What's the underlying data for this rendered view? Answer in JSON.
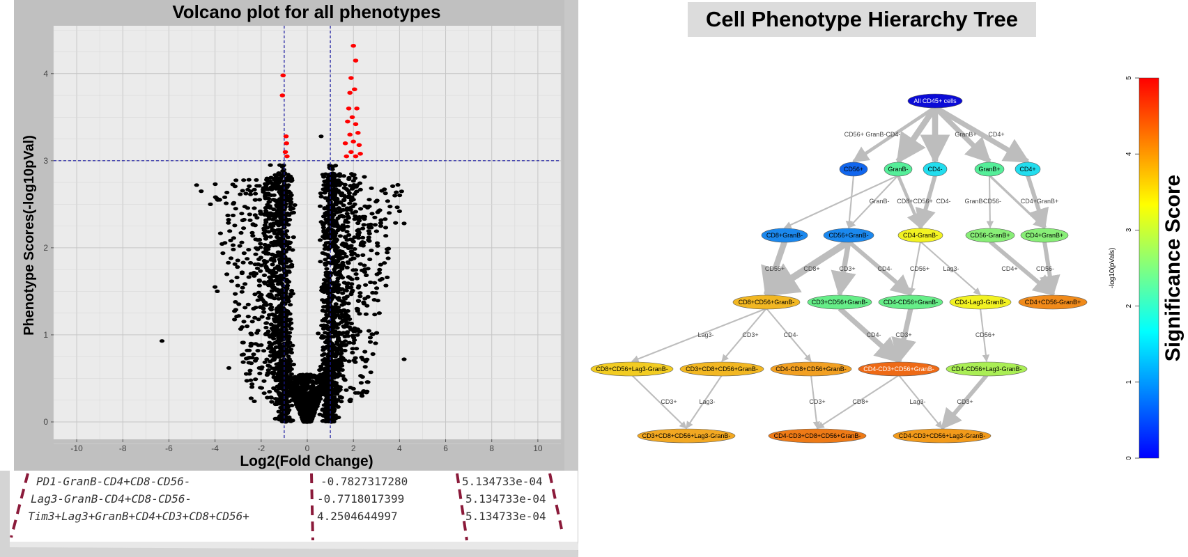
{
  "volcano": {
    "title": "Volcano plot for all phenotypes",
    "xlabel": "Log2(Fold Change)",
    "ylabel": "Phenotype Scores(-log10pVal)",
    "x_ticks": [
      "-10",
      "-8",
      "-6",
      "-4",
      "-2",
      "0",
      "2",
      "4",
      "6",
      "8",
      "10"
    ],
    "y_ticks": [
      "0",
      "1",
      "2",
      "3",
      "4"
    ]
  },
  "chart_data": {
    "type": "scatter",
    "title": "Volcano plot for all phenotypes",
    "xlabel": "Log2(Fold Change)",
    "ylabel": "Phenotype Scores(-log10pVal)",
    "xlim": [
      -11,
      11
    ],
    "ylim": [
      -0.2,
      4.55
    ],
    "grid": true,
    "thresholds": {
      "x": [
        -1,
        1
      ],
      "y": 3
    },
    "colors": {
      "significant": "#ff0000",
      "other": "#000000",
      "threshold_line": "#1a1aa0",
      "panel": "#ebebeb"
    },
    "significant_points": [
      [
        -1.05,
        3.98
      ],
      [
        -1.08,
        3.75
      ],
      [
        -0.92,
        3.28
      ],
      [
        -0.9,
        3.2
      ],
      [
        -0.95,
        3.1
      ],
      [
        -0.88,
        3.05
      ],
      [
        2.0,
        4.32
      ],
      [
        2.1,
        4.15
      ],
      [
        1.9,
        3.95
      ],
      [
        2.05,
        3.82
      ],
      [
        1.85,
        3.78
      ],
      [
        1.8,
        3.6
      ],
      [
        2.15,
        3.6
      ],
      [
        1.95,
        3.5
      ],
      [
        2.1,
        3.42
      ],
      [
        1.75,
        3.45
      ],
      [
        2.2,
        3.32
      ],
      [
        1.85,
        3.3
      ],
      [
        2.0,
        3.22
      ],
      [
        2.25,
        3.18
      ],
      [
        1.65,
        3.2
      ],
      [
        1.9,
        3.1
      ],
      [
        2.1,
        3.05
      ],
      [
        1.7,
        3.05
      ],
      [
        2.3,
        3.08
      ]
    ],
    "outliers": [
      [
        -6.3,
        0.93
      ],
      [
        -4.8,
        2.72
      ],
      [
        -4.6,
        2.65
      ],
      [
        -4.2,
        2.5
      ],
      [
        -4.0,
        1.55
      ],
      [
        -3.9,
        1.5
      ],
      [
        -3.4,
        0.62
      ],
      [
        3.8,
        2.6
      ],
      [
        4.0,
        2.42
      ],
      [
        4.2,
        2.28
      ],
      [
        4.2,
        0.72
      ],
      [
        0.6,
        3.28
      ],
      [
        -1.6,
        2.95
      ]
    ],
    "bulk_note": "Several thousand non-significant phenotypes (black) concentrated in two lobes at x≈-1 and x≈1 with a dense base near (0,0)."
  },
  "table": {
    "rows": [
      {
        "phenotype": "PD1-GranB-CD4+CD8-CD56-",
        "log2fc": "-0.7827317280",
        "pval": "5.134733e-04"
      },
      {
        "phenotype": "Lag3-GranB-CD4+CD8-CD56-",
        "log2fc": "-0.7718017399",
        "pval": "5.134733e-04"
      },
      {
        "phenotype": "Tim3+Lag3+GranB+CD4+CD3+CD8+CD56+",
        "log2fc": " 4.2504644997",
        "pval": "5.134733e-04"
      }
    ]
  },
  "tree": {
    "title": "Cell Phenotype Hierarchy Tree",
    "nodes": [
      {
        "id": "root",
        "label": "All CD45+ cells",
        "color": "#0b0bd6",
        "text_color": "#ffffff"
      },
      {
        "id": "cd56p",
        "label": "CD56+",
        "color": "#1166ee",
        "text_color": "#000000"
      },
      {
        "id": "granbm",
        "label": "GranB-",
        "color": "#55ee99",
        "text_color": "#000000"
      },
      {
        "id": "cd4m",
        "label": "CD4-",
        "color": "#22ddee",
        "text_color": "#000000"
      },
      {
        "id": "granbp",
        "label": "GranB+",
        "color": "#55ee99",
        "text_color": "#000000"
      },
      {
        "id": "cd4p",
        "label": "CD4+",
        "color": "#22ddee",
        "text_color": "#000000"
      },
      {
        "id": "cd8granbm",
        "label": "CD8+GranB-",
        "color": "#1b88ee",
        "text_color": "#000000"
      },
      {
        "id": "cd56granbm",
        "label": "CD56+GranB-",
        "color": "#1b88ee",
        "text_color": "#000000"
      },
      {
        "id": "cd4mgranbm",
        "label": "CD4-GranB-",
        "color": "#f2f222",
        "text_color": "#000000"
      },
      {
        "id": "cd56mgranbp",
        "label": "CD56-GranB+",
        "color": "#88ee77",
        "text_color": "#000000"
      },
      {
        "id": "cd4pgranbp",
        "label": "CD4+GranB+",
        "color": "#88ee77",
        "text_color": "#000000"
      },
      {
        "id": "cd8cd56granbm",
        "label": "CD8+CD56+GranB-",
        "color": "#f2b722",
        "text_color": "#000000"
      },
      {
        "id": "cd3cd56granbm",
        "label": "CD3+CD56+GranB-",
        "color": "#66ee88",
        "text_color": "#000000"
      },
      {
        "id": "cd4mcd56granbm",
        "label": "CD4-CD56+GranB-",
        "color": "#66ee88",
        "text_color": "#000000"
      },
      {
        "id": "cd4mlag3granbm",
        "label": "CD4-Lag3-GranB-",
        "color": "#f2f222",
        "text_color": "#000000"
      },
      {
        "id": "cd4pcd56mgranbp",
        "label": "CD4+CD56-GranB+",
        "color": "#f08a1a",
        "text_color": "#000000"
      },
      {
        "id": "cd8cd56lag3granbm",
        "label": "CD8+CD56+Lag3-GranB-",
        "color": "#f2cc22",
        "text_color": "#000000"
      },
      {
        "id": "cd3cd8cd56granbm",
        "label": "CD3+CD8+CD56+GranB-",
        "color": "#f2b722",
        "text_color": "#000000"
      },
      {
        "id": "cd4mcd8cd56granbm",
        "label": "CD4-CD8+CD56+GranB-",
        "color": "#f2a022",
        "text_color": "#000000"
      },
      {
        "id": "cd4mcd3cd56granbm",
        "label": "CD4-CD3+CD56+GranB-",
        "color": "#ee6a16",
        "text_color": "#ffffff"
      },
      {
        "id": "cd4mcd56lag3granbm",
        "label": "CD4-CD56+Lag3-GranB-",
        "color": "#aaee55",
        "text_color": "#000000"
      },
      {
        "id": "cd3cd8cd56lag3granbm",
        "label": "CD3+CD8+CD56+Lag3-GranB-",
        "color": "#f2a822",
        "text_color": "#000000"
      },
      {
        "id": "cd4mcd3cd8cd56granbm",
        "label": "CD4-CD3+CD8+CD56+GranB-",
        "color": "#ee7a16",
        "text_color": "#000000"
      },
      {
        "id": "cd4mcd3cd56lag3granbm",
        "label": "CD4-CD3+CD56+Lag3-GranB-",
        "color": "#f29a1a",
        "text_color": "#000000"
      }
    ],
    "edges": [
      {
        "from": "root",
        "to": "cd56p",
        "w": 3
      },
      {
        "from": "root",
        "to": "granbm",
        "w": 6
      },
      {
        "from": "root",
        "to": "cd4m",
        "w": 6
      },
      {
        "from": "root",
        "to": "granbp",
        "w": 5
      },
      {
        "from": "root",
        "to": "cd4p",
        "w": 5
      },
      {
        "from": "cd56p",
        "to": "cd56granbm",
        "w": 1
      },
      {
        "from": "granbm",
        "to": "cd8granbm",
        "w": 1
      },
      {
        "from": "granbm",
        "to": "cd56granbm",
        "w": 1
      },
      {
        "from": "granbm",
        "to": "cd4mgranbm",
        "w": 3
      },
      {
        "from": "cd4m",
        "to": "cd4mgranbm",
        "w": 4
      },
      {
        "from": "granbp",
        "to": "cd56mgranbp",
        "w": 1
      },
      {
        "from": "granbp",
        "to": "cd4pgranbp",
        "w": 2
      },
      {
        "from": "cd4p",
        "to": "cd4pgranbp",
        "w": 4
      },
      {
        "from": "cd8granbm",
        "to": "cd8cd56granbm",
        "w": 6
      },
      {
        "from": "cd56granbm",
        "to": "cd8cd56granbm",
        "w": 7
      },
      {
        "from": "cd56granbm",
        "to": "cd3cd56granbm",
        "w": 5
      },
      {
        "from": "cd56granbm",
        "to": "cd4mcd56granbm",
        "w": 4
      },
      {
        "from": "cd4mgranbm",
        "to": "cd4mcd56granbm",
        "w": 1
      },
      {
        "from": "cd4mgranbm",
        "to": "cd4mlag3granbm",
        "w": 1
      },
      {
        "from": "cd56mgranbp",
        "to": "cd4pcd56mgranbp",
        "w": 4
      },
      {
        "from": "cd4pgranbp",
        "to": "cd4pcd56mgranbp",
        "w": 4
      },
      {
        "from": "cd8cd56granbm",
        "to": "cd8cd56lag3granbm",
        "w": 1
      },
      {
        "from": "cd8cd56granbm",
        "to": "cd3cd8cd56granbm",
        "w": 1
      },
      {
        "from": "cd8cd56granbm",
        "to": "cd4mcd8cd56granbm",
        "w": 1
      },
      {
        "from": "cd3cd56granbm",
        "to": "cd4mcd3cd56granbm",
        "w": 5
      },
      {
        "from": "cd4mcd56granbm",
        "to": "cd4mcd3cd56granbm",
        "w": 5
      },
      {
        "from": "cd4mlag3granbm",
        "to": "cd4mcd56lag3granbm",
        "w": 1
      },
      {
        "from": "cd8cd56lag3granbm",
        "to": "cd3cd8cd56lag3granbm",
        "w": 1
      },
      {
        "from": "cd3cd8cd56granbm",
        "to": "cd3cd8cd56lag3granbm",
        "w": 1
      },
      {
        "from": "cd4mcd8cd56granbm",
        "to": "cd4mcd3cd8cd56granbm",
        "w": 1
      },
      {
        "from": "cd4mcd3cd56granbm",
        "to": "cd4mcd3cd8cd56granbm",
        "w": 1
      },
      {
        "from": "cd4mcd3cd56granbm",
        "to": "cd4mcd3cd56lag3granbm",
        "w": 1
      },
      {
        "from": "cd4mcd56lag3granbm",
        "to": "cd4mcd3cd56lag3granbm",
        "w": 4
      }
    ],
    "edge_labels": [
      {
        "text": "CD56+ GranB-CD4-",
        "row": 1
      },
      {
        "text": "GranB+",
        "row": 1
      },
      {
        "text": "CD4+",
        "row": 1
      },
      {
        "text": "GranB-",
        "row": 2
      },
      {
        "text": "CD8+CD56+",
        "row": 2
      },
      {
        "text": "CD4-",
        "row": 2
      },
      {
        "text": "GranB-",
        "row": 2
      },
      {
        "text": "CD56-",
        "row": 2
      },
      {
        "text": "CD4+GranB+",
        "row": 2
      },
      {
        "text": "CD56+",
        "row": 3
      },
      {
        "text": "CD8+",
        "row": 3
      },
      {
        "text": "CD3+",
        "row": 3
      },
      {
        "text": "CD4-",
        "row": 3
      },
      {
        "text": "CD56+",
        "row": 3
      },
      {
        "text": "Lag3-",
        "row": 3
      },
      {
        "text": "CD4+",
        "row": 3
      },
      {
        "text": "CD56-",
        "row": 3
      },
      {
        "text": "Lag3-",
        "row": 4
      },
      {
        "text": "CD3+",
        "row": 4
      },
      {
        "text": "CD4-",
        "row": 4
      },
      {
        "text": "CD4-",
        "row": 4
      },
      {
        "text": "CD3+",
        "row": 4
      },
      {
        "text": "CD56+",
        "row": 4
      },
      {
        "text": "CD3+",
        "row": 5
      },
      {
        "text": "Lag3-",
        "row": 5
      },
      {
        "text": "CD3+",
        "row": 5
      },
      {
        "text": "CD8+",
        "row": 5
      },
      {
        "text": "Lag3-",
        "row": 5
      },
      {
        "text": "CD3+",
        "row": 5
      }
    ]
  },
  "colorbar": {
    "title": "Significance Score",
    "axis_label": "-log10(pVals)",
    "ticks": [
      "0",
      "1",
      "2",
      "3",
      "4",
      "5"
    ],
    "range": [
      0,
      5
    ],
    "colors": [
      "#0000ff",
      "#0080ff",
      "#00ffff",
      "#80ff80",
      "#ffff00",
      "#ff8000",
      "#ff0000"
    ]
  }
}
